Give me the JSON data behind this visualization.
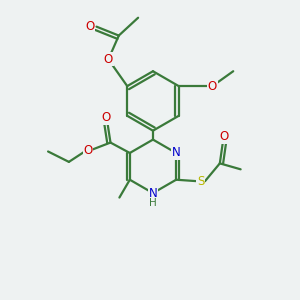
{
  "bg_color": "#eef2f2",
  "bond_color": "#3a7a3a",
  "O_color": "#cc0000",
  "N_color": "#0000cc",
  "S_color": "#b8b800",
  "line_width": 1.6,
  "font_size": 8.5,
  "fig_w": 3.0,
  "fig_h": 3.0,
  "dpi": 100,
  "xlim": [
    0,
    10
  ],
  "ylim": [
    0,
    10
  ]
}
